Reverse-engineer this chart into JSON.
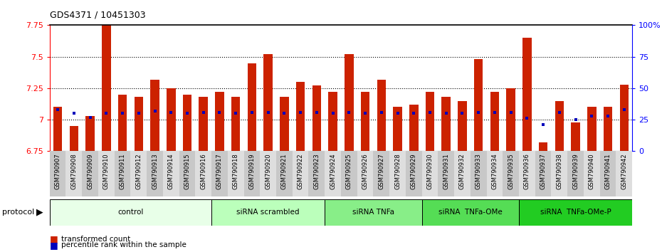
{
  "title": "GDS4371 / 10451303",
  "samples": [
    "GSM790907",
    "GSM790908",
    "GSM790909",
    "GSM790910",
    "GSM790911",
    "GSM790912",
    "GSM790913",
    "GSM790914",
    "GSM790915",
    "GSM790916",
    "GSM790917",
    "GSM790918",
    "GSM790919",
    "GSM790920",
    "GSM790921",
    "GSM790922",
    "GSM790923",
    "GSM790924",
    "GSM790925",
    "GSM790926",
    "GSM790927",
    "GSM790928",
    "GSM790929",
    "GSM790930",
    "GSM790931",
    "GSM790932",
    "GSM790933",
    "GSM790934",
    "GSM790935",
    "GSM790936",
    "GSM790937",
    "GSM790938",
    "GSM790939",
    "GSM790940",
    "GSM790941",
    "GSM790942"
  ],
  "bar_values": [
    7.1,
    6.95,
    7.03,
    7.75,
    7.2,
    7.18,
    7.32,
    7.25,
    7.2,
    7.18,
    7.22,
    7.18,
    7.45,
    7.52,
    7.18,
    7.3,
    7.27,
    7.22,
    7.52,
    7.22,
    7.32,
    7.1,
    7.12,
    7.22,
    7.18,
    7.15,
    7.48,
    7.22,
    7.25,
    7.65,
    6.82,
    7.15,
    6.98,
    7.1,
    7.1,
    7.28
  ],
  "percentile_values": [
    33,
    30,
    27,
    30,
    30,
    30,
    32,
    31,
    30,
    31,
    31,
    30,
    31,
    31,
    30,
    31,
    31,
    30,
    31,
    30,
    31,
    30,
    30,
    31,
    30,
    30,
    31,
    31,
    31,
    26,
    21,
    31,
    25,
    28,
    28,
    33
  ],
  "groups": [
    {
      "label": "control",
      "start": 0,
      "end": 10,
      "color": "#e8ffe8"
    },
    {
      "label": "siRNA scrambled",
      "start": 10,
      "end": 17,
      "color": "#bbffbb"
    },
    {
      "label": "siRNA TNFa",
      "start": 17,
      "end": 23,
      "color": "#88ee88"
    },
    {
      "label": "siRNA  TNFa-OMe",
      "start": 23,
      "end": 29,
      "color": "#55dd55"
    },
    {
      "label": "siRNA  TNFa-OMe-P",
      "start": 29,
      "end": 36,
      "color": "#22cc22"
    }
  ],
  "ymin": 6.75,
  "ymax": 7.75,
  "bar_color": "#cc2200",
  "blue_color": "#0000bb",
  "yticks": [
    6.75,
    7.0,
    7.25,
    7.5,
    7.75
  ],
  "ytick_labels": [
    "6.75",
    "7",
    "7.25",
    "7.5",
    "7.75"
  ],
  "right_yticks": [
    0,
    25,
    50,
    75,
    100
  ],
  "right_ytick_labels": [
    "0",
    "25",
    "50",
    "75",
    "100%"
  ],
  "grid_lines": [
    7.0,
    7.25,
    7.5
  ],
  "bar_width": 0.55
}
